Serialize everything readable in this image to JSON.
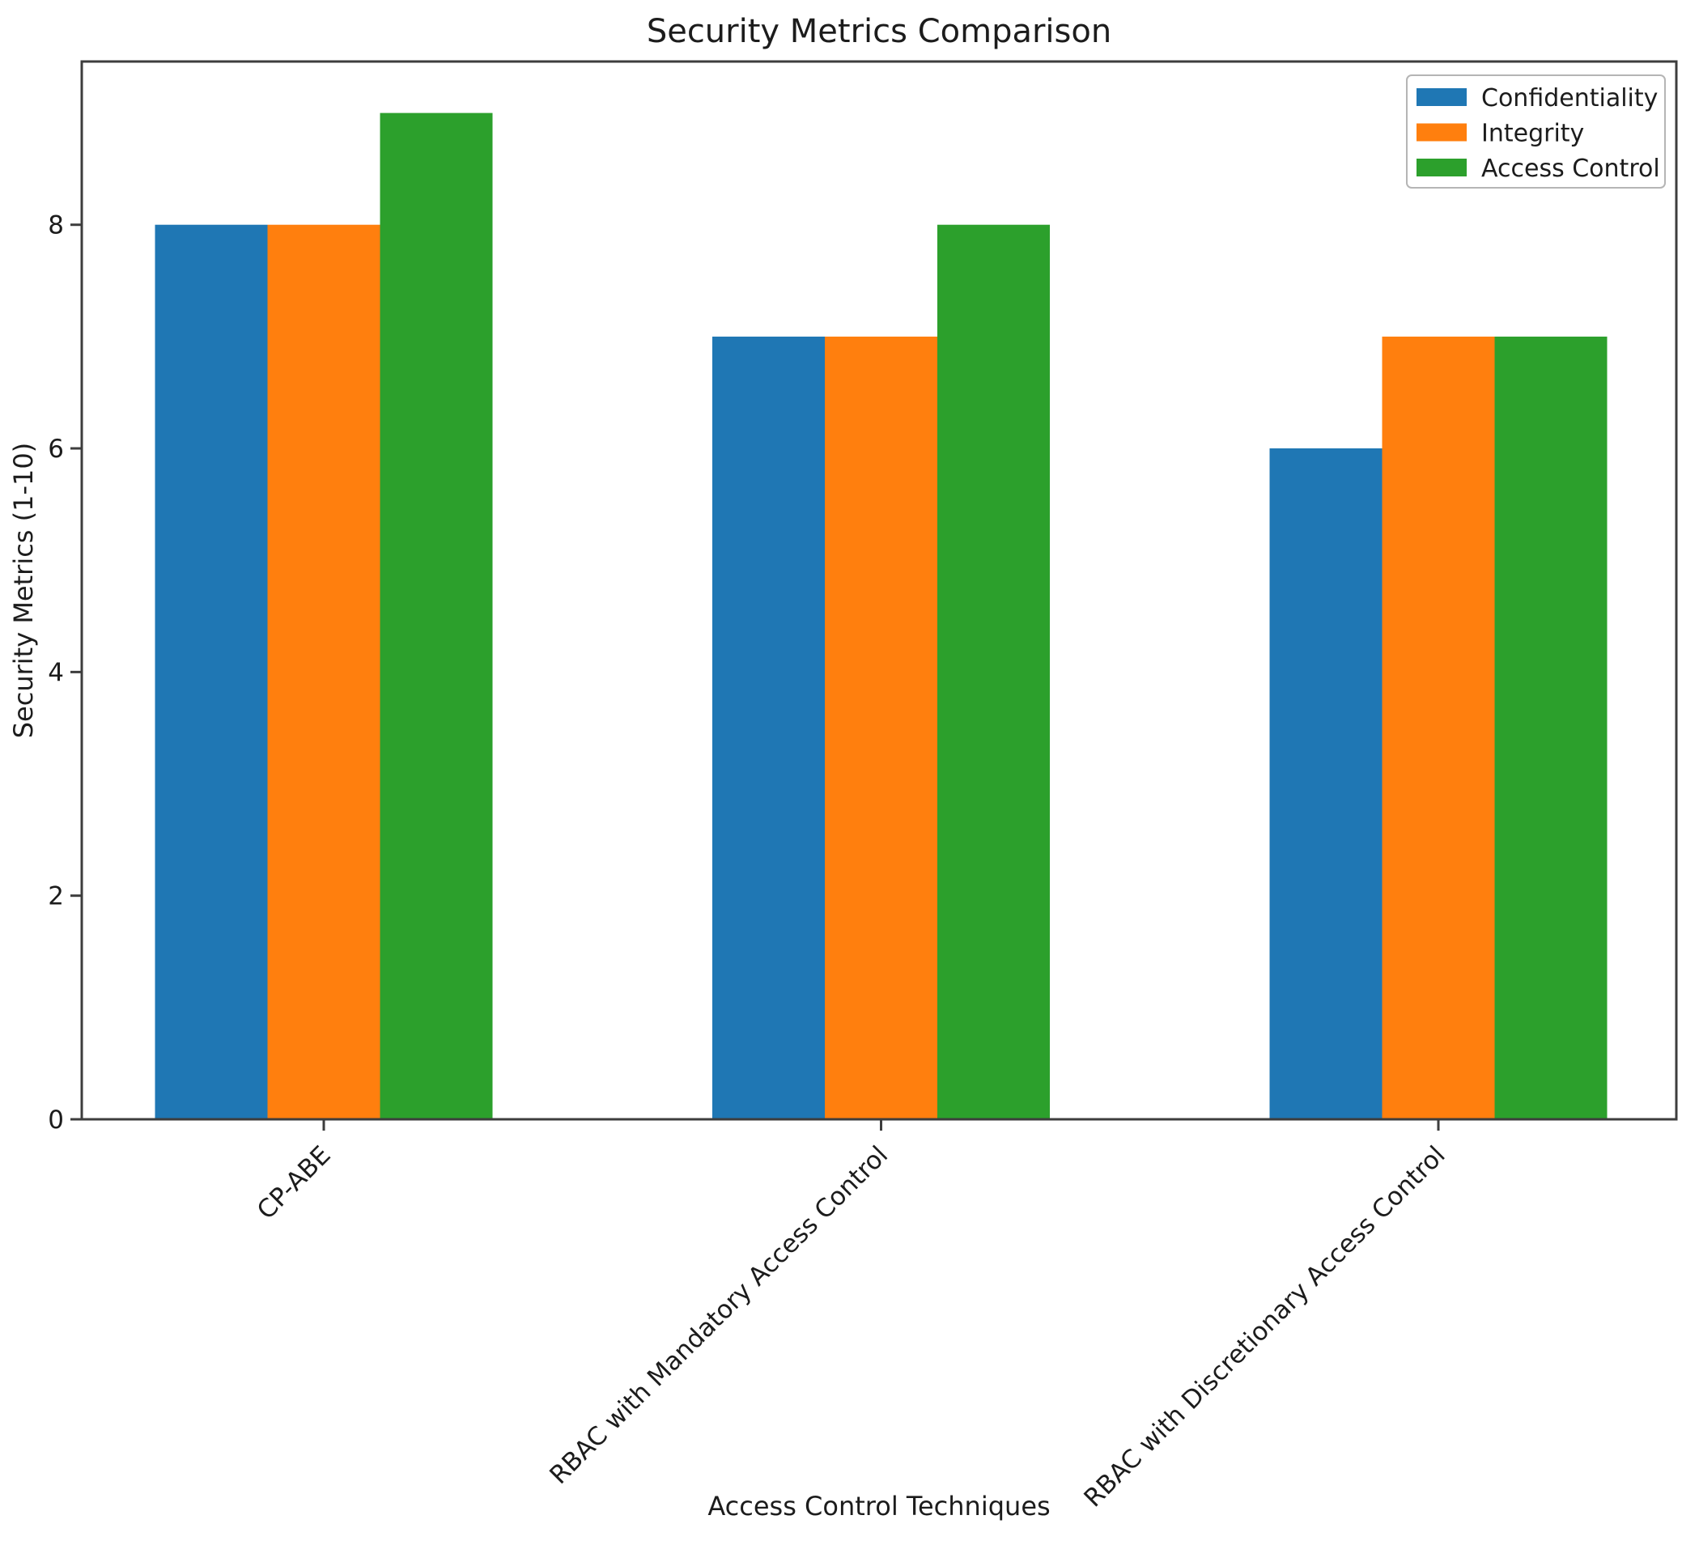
{
  "chart_data": {
    "type": "bar",
    "title": "Security Metrics Comparison",
    "xlabel": "Access Control Techniques",
    "ylabel": "Security Metrics (1-10)",
    "categories": [
      "CP-ABE",
      "RBAC with Mandatory Access Control",
      "RBAC with Discretionary Access Control"
    ],
    "series": [
      {
        "name": "Confidentiality",
        "color": "#1f77b4",
        "values": [
          8,
          7,
          6
        ]
      },
      {
        "name": "Integrity",
        "color": "#ff7f0e",
        "values": [
          8,
          7,
          7
        ]
      },
      {
        "name": "Access Control",
        "color": "#2ca02c",
        "values": [
          9,
          8,
          7
        ]
      }
    ],
    "yticks": [
      0,
      2,
      4,
      6,
      8
    ],
    "ylim": [
      0,
      9.46
    ],
    "grid": false,
    "legend_position": "upper right",
    "colors": {
      "axis": "#3d3d3d",
      "text": "#1c1c1c",
      "legend_border": "#b5b5b5",
      "background": "#ffffff"
    }
  }
}
